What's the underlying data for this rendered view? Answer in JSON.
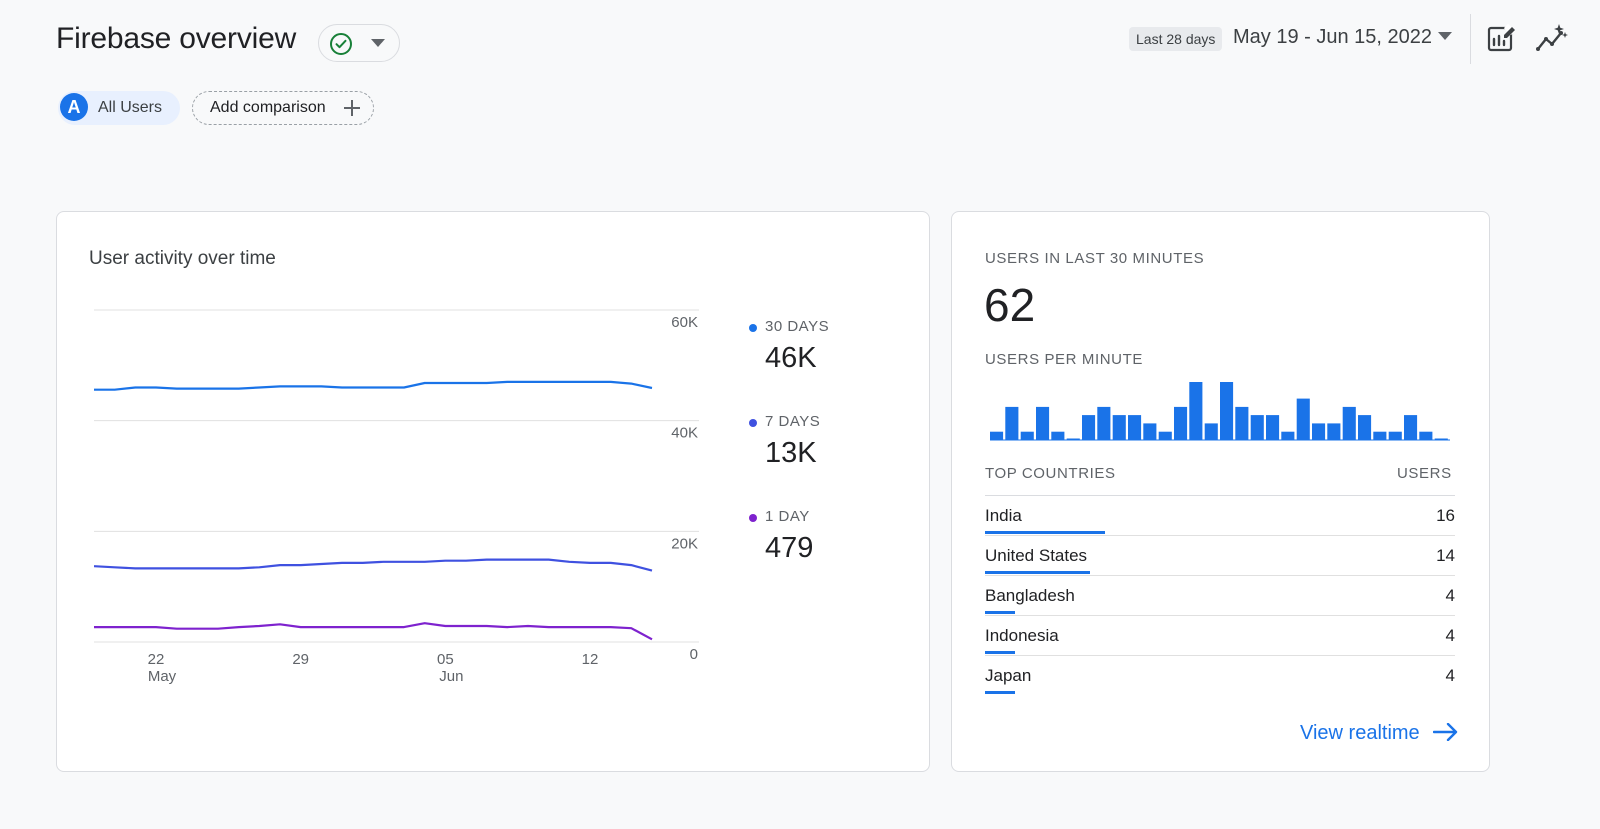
{
  "header": {
    "title": "Firebase overview",
    "date_badge": "Last 28 days",
    "date_range": "May 19 - Jun 15, 2022"
  },
  "filters": {
    "audience_initial": "A",
    "audience_label": "All Users",
    "add_comparison_label": "Add comparison"
  },
  "user_activity": {
    "title": "User activity over time",
    "legend": [
      {
        "label": "30 DAYS",
        "value": "46K",
        "color": "#1a73e8"
      },
      {
        "label": "7 DAYS",
        "value": "13K",
        "color": "#3f51e0"
      },
      {
        "label": "1 DAY",
        "value": "479",
        "color": "#7e22ce"
      }
    ]
  },
  "chart_data": {
    "type": "line",
    "title": "User activity over time",
    "y_ticks": [
      "60K",
      "40K",
      "20K",
      "0"
    ],
    "ylim": [
      0,
      60000
    ],
    "x_ticks": [
      {
        "top": "22",
        "bottom": "May",
        "day": 3
      },
      {
        "top": "29",
        "bottom": "",
        "day": 10
      },
      {
        "top": "05",
        "bottom": "Jun",
        "day": 17
      },
      {
        "top": "12",
        "bottom": "",
        "day": 24
      }
    ],
    "x": [
      "May 19",
      "May 20",
      "May 21",
      "May 22",
      "May 23",
      "May 24",
      "May 25",
      "May 26",
      "May 27",
      "May 28",
      "May 29",
      "May 30",
      "May 31",
      "Jun 1",
      "Jun 2",
      "Jun 3",
      "Jun 4",
      "Jun 5",
      "Jun 6",
      "Jun 7",
      "Jun 8",
      "Jun 9",
      "Jun 10",
      "Jun 11",
      "Jun 12",
      "Jun 13",
      "Jun 14",
      "Jun 15"
    ],
    "series": [
      {
        "name": "30 DAYS",
        "color": "#1a73e8",
        "values": [
          45600,
          45600,
          46000,
          46000,
          45800,
          45800,
          45800,
          45800,
          46000,
          46200,
          46200,
          46200,
          46000,
          46000,
          46000,
          46000,
          46800,
          46800,
          46800,
          46800,
          47000,
          47000,
          47000,
          47000,
          47000,
          47000,
          46700,
          45900
        ]
      },
      {
        "name": "7 DAYS",
        "color": "#3f51e0",
        "values": [
          13700,
          13500,
          13300,
          13300,
          13300,
          13300,
          13300,
          13300,
          13500,
          13900,
          13900,
          14100,
          14300,
          14300,
          14500,
          14500,
          14500,
          14700,
          14700,
          14900,
          14900,
          14900,
          14900,
          14500,
          14300,
          14300,
          13900,
          12900
        ]
      },
      {
        "name": "1 DAY",
        "color": "#7e22ce",
        "values": [
          2700,
          2700,
          2700,
          2700,
          2400,
          2400,
          2400,
          2700,
          2900,
          3200,
          2700,
          2700,
          2700,
          2700,
          2700,
          2700,
          3400,
          2900,
          2900,
          2900,
          2700,
          2900,
          2700,
          2700,
          2700,
          2700,
          2500,
          479
        ]
      }
    ]
  },
  "realtime": {
    "users_label": "USERS IN LAST 30 MINUTES",
    "users_value": "62",
    "per_minute_label": "USERS PER MINUTE",
    "per_minute_values": [
      1,
      4,
      1,
      4,
      1,
      0,
      3,
      4,
      3,
      3,
      2,
      1,
      4,
      7,
      2,
      7,
      4,
      3,
      3,
      1,
      5,
      2,
      2,
      4,
      3,
      1,
      1,
      3,
      1,
      0
    ],
    "countries_header": "TOP COUNTRIES",
    "users_header": "USERS",
    "countries": [
      {
        "name": "India",
        "value": "16"
      },
      {
        "name": "United States",
        "value": "14"
      },
      {
        "name": "Bangladesh",
        "value": "4"
      },
      {
        "name": "Indonesia",
        "value": "4"
      },
      {
        "name": "Japan",
        "value": "4"
      }
    ],
    "view_realtime_label": "View realtime"
  },
  "colors": {
    "accent": "#1a73e8",
    "success": "#188038",
    "series_30d": "#1a73e8",
    "series_7d": "#3f51e0",
    "series_1d": "#7e22ce"
  },
  "icons": {
    "status": "check-circle-icon",
    "insights": "edit-report-icon",
    "sparkle": "insights-sparkle-icon"
  }
}
